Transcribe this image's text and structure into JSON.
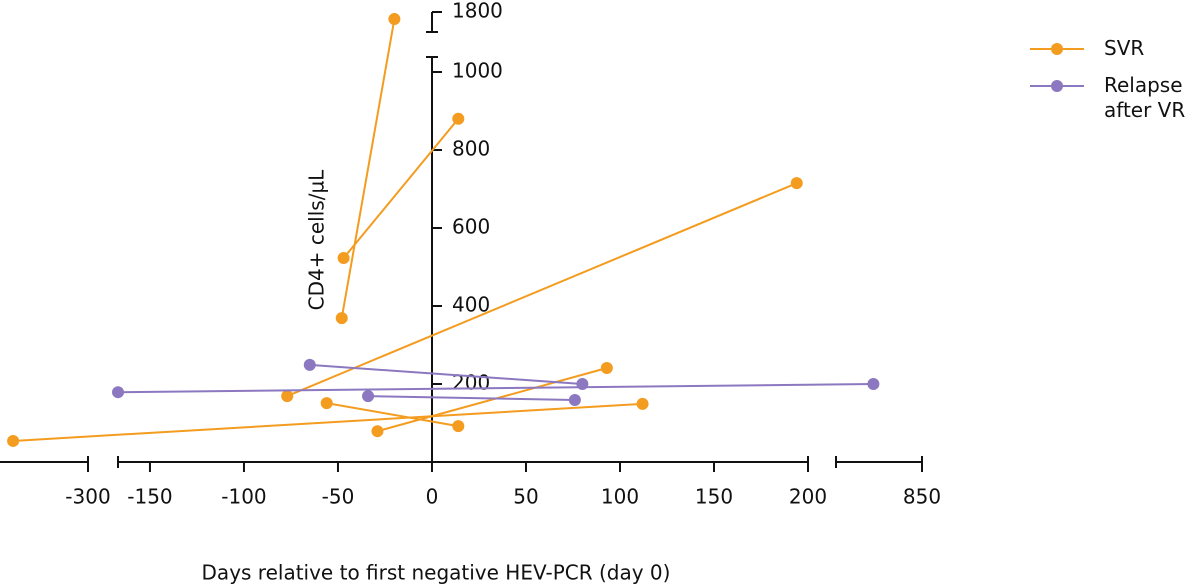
{
  "chart_data": {
    "type": "line",
    "x_label": "Days relative to first negative HEV-PCR (day 0)",
    "y_label": "CD4+ cells/µL",
    "xlim": [
      -347,
      850
    ],
    "x_breaks": [
      [
        -300,
        -167
      ],
      [
        200,
        804
      ]
    ],
    "ylim": [
      0,
      1800
    ],
    "y_breaks": [
      [
        1000,
        1749
      ]
    ],
    "xticks": [
      -300,
      -150,
      -100,
      -50,
      0,
      50,
      100,
      150,
      200,
      850
    ],
    "yticks": [
      200,
      400,
      600,
      800,
      1000,
      1800
    ],
    "series": [
      {
        "name": "SVR",
        "color": "#f39c1f",
        "lines": [
          {
            "x": [
              -48,
              -20
            ],
            "values": [
              369,
              1782
            ]
          },
          {
            "x": [
              -47,
              14
            ],
            "values": [
              523,
              880
            ]
          },
          {
            "x": [
              -77,
              194
            ],
            "values": [
              169,
              715
            ]
          },
          {
            "x": [
              -56,
              14
            ],
            "values": [
              151,
              92
            ]
          },
          {
            "x": [
              -29,
              93
            ],
            "values": [
              79,
              241
            ]
          },
          {
            "x": [
              -340,
              112
            ],
            "values": [
              54,
              149
            ]
          }
        ]
      },
      {
        "name": "Relapse after VR",
        "color": "#8b78c0",
        "lines": [
          {
            "x": [
              -65,
              80
            ],
            "values": [
              249,
              200
            ]
          },
          {
            "x": [
              -167,
              824
            ],
            "values": [
              179,
              200
            ]
          },
          {
            "x": [
              -34,
              76
            ],
            "values": [
              169,
              159
            ]
          }
        ]
      }
    ]
  }
}
